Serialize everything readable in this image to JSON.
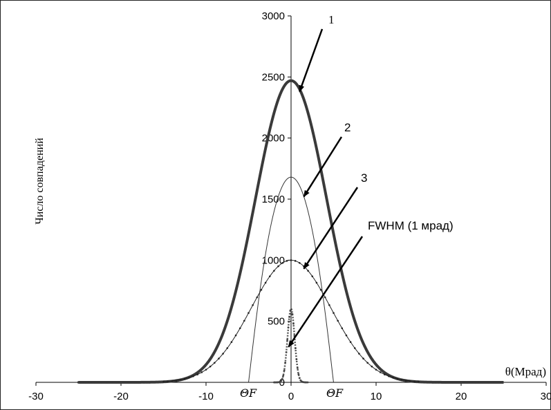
{
  "chart_data": {
    "type": "line",
    "title": "",
    "xlabel": "θ(Мрад)",
    "ylabel": "Число совпадений",
    "xlim": [
      -30,
      30
    ],
    "ylim": [
      0,
      3000
    ],
    "x_ticks": [
      -30,
      -20,
      -10,
      0,
      10,
      20,
      30
    ],
    "x_tick_labels": [
      "-30",
      "-20",
      "-10",
      "0",
      "10",
      "20",
      "30"
    ],
    "y_ticks": [
      0,
      500,
      1000,
      1500,
      2000,
      2500,
      3000
    ],
    "y_tick_labels": [
      "0",
      "500",
      "1000",
      "1500",
      "2000",
      "2500",
      "3000"
    ],
    "grid": false,
    "legend": "none",
    "series": [
      {
        "label": "1",
        "style": "thick",
        "color": "#3a3a3a",
        "x_range": [
          -25,
          25
        ],
        "peak": 2470,
        "sigma": 4.2,
        "shape": "gaussian"
      },
      {
        "label": "2",
        "style": "thin",
        "color": "#333333",
        "x_range": [
          -5,
          5
        ],
        "peak": 1680,
        "shape": "dome"
      },
      {
        "label": "3",
        "style": "thin-markers",
        "color": "#222222",
        "x_range": [
          -15,
          15
        ],
        "peak": 1000,
        "sigma": 4.7,
        "shape": "gaussian"
      },
      {
        "label": "FWHM",
        "style": "dotted",
        "color": "#555555",
        "x_range": [
          -2,
          2
        ],
        "peak": 600,
        "sigma": 0.42,
        "shape": "gaussian"
      }
    ],
    "annotations": [
      {
        "text": "1",
        "points_to": [
          1,
          2380
        ]
      },
      {
        "text": "2",
        "points_to": [
          1.5,
          1520
        ]
      },
      {
        "text": "3",
        "points_to": [
          1.5,
          930
        ]
      },
      {
        "text": "FWHM (1 мрад)",
        "points_to": [
          -0.3,
          290
        ]
      }
    ],
    "theta_f_labels": [
      "Θ",
      "F",
      "Θ",
      "F"
    ]
  }
}
